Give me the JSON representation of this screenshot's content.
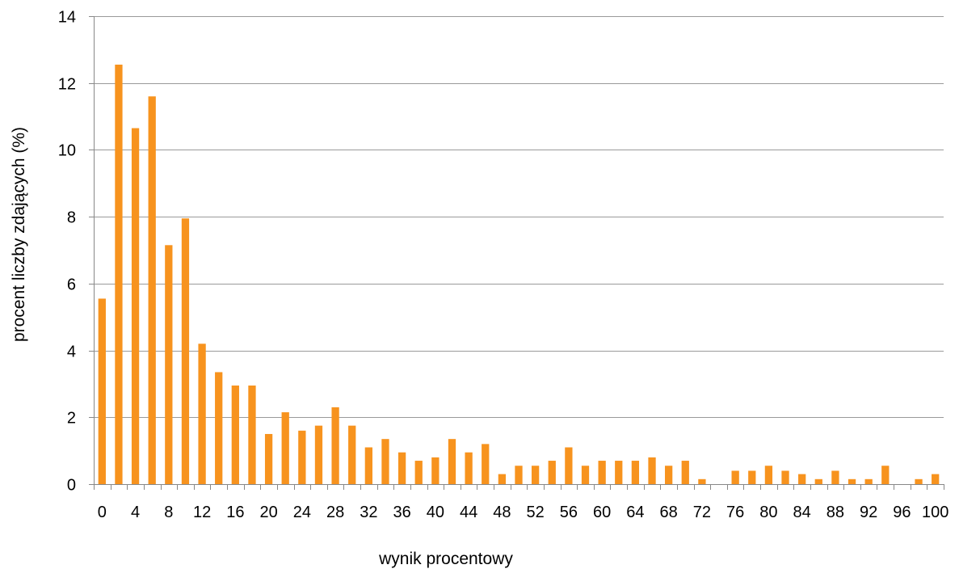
{
  "chart_data": {
    "type": "bar",
    "xlabel": "wynik procentowy",
    "ylabel": "procent liczby zdających (%)",
    "ylim": [
      0,
      14
    ],
    "yticks": [
      0,
      2,
      4,
      6,
      8,
      10,
      12,
      14
    ],
    "xticks": [
      0,
      4,
      8,
      12,
      16,
      20,
      24,
      28,
      32,
      36,
      40,
      44,
      48,
      52,
      56,
      60,
      64,
      68,
      72,
      76,
      80,
      84,
      88,
      92,
      96,
      100
    ],
    "grid": true,
    "legend": "none",
    "bar_color": "#F7931E",
    "x": [
      0,
      2,
      4,
      6,
      8,
      10,
      12,
      14,
      16,
      18,
      20,
      22,
      24,
      26,
      28,
      30,
      32,
      34,
      36,
      38,
      40,
      42,
      44,
      46,
      48,
      50,
      52,
      54,
      56,
      58,
      60,
      62,
      64,
      66,
      68,
      70,
      72,
      74,
      76,
      78,
      80,
      82,
      84,
      86,
      88,
      90,
      92,
      94,
      96,
      98,
      100
    ],
    "values": [
      5.55,
      12.55,
      10.65,
      11.6,
      7.15,
      7.95,
      4.2,
      3.35,
      2.95,
      2.95,
      1.5,
      2.15,
      1.6,
      1.75,
      2.3,
      1.75,
      1.1,
      1.35,
      0.95,
      0.7,
      0.8,
      1.35,
      0.95,
      1.2,
      0.3,
      0.55,
      0.55,
      0.7,
      1.1,
      0.55,
      0.7,
      0.7,
      0.7,
      0.8,
      0.55,
      0.7,
      0.15,
      0,
      0.4,
      0.4,
      0.55,
      0.4,
      0.3,
      0.15,
      0.4,
      0.15,
      0.15,
      0.55,
      0,
      0.15,
      0.3
    ]
  }
}
